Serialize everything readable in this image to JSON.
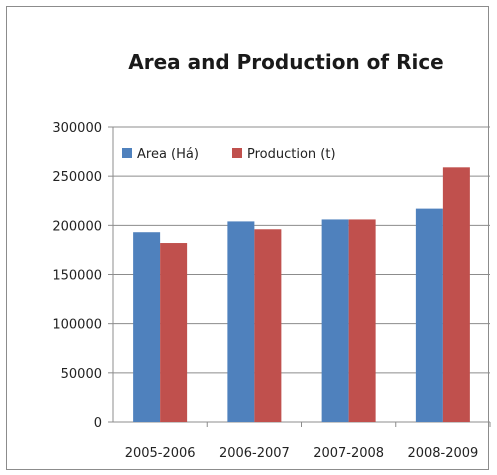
{
  "chart_data": {
    "type": "bar",
    "title": "Area and Production of Rice",
    "xlabel": "",
    "ylabel": "",
    "categories": [
      "2005-2006",
      "2006-2007",
      "2007-2008",
      "2008-2009"
    ],
    "series": [
      {
        "name": "Area (Há)",
        "values": [
          193000,
          204000,
          206000,
          217000
        ],
        "color": "#4f81bd"
      },
      {
        "name": "Production (t)",
        "values": [
          182000,
          196000,
          206000,
          259000
        ],
        "color": "#c0504d"
      }
    ],
    "ylim": [
      0,
      300000
    ],
    "yticks": [
      "0",
      "50000",
      "100000",
      "150000",
      "200000",
      "250000",
      "300000"
    ],
    "grid": true,
    "legend": "top-left"
  }
}
